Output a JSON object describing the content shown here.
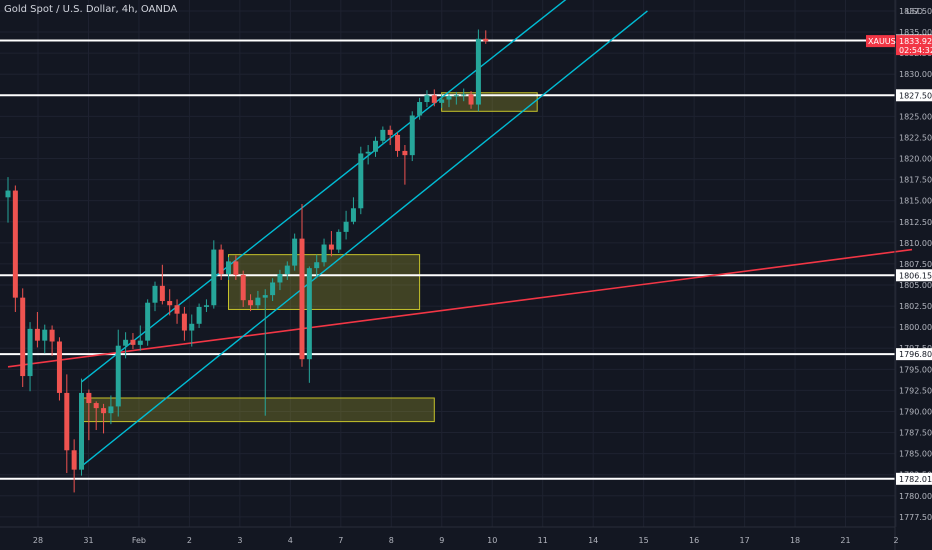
{
  "window": {
    "title": "Gold Spot / U.S. Dollar, 4h, OANDA",
    "currency": "USD"
  },
  "chart_data": {
    "type": "candlestick",
    "title": "Gold Spot / U.S. Dollar, 4h, OANDA",
    "symbol": "XAUUSD",
    "timeframe": "4h",
    "ylabel": "USD",
    "ylim": [
      1776.3,
      1838.8
    ],
    "yticks": [
      "1777.500",
      "1780.000",
      "1782.500",
      "1785.000",
      "1787.500",
      "1790.000",
      "1792.500",
      "1795.000",
      "1797.500",
      "1800.000",
      "1802.500",
      "1805.000",
      "1807.500",
      "1810.000",
      "1812.500",
      "1815.000",
      "1817.500",
      "1820.000",
      "1822.500",
      "1825.000",
      "1827.500",
      "1830.000",
      "1832.500",
      "1835.000",
      "1837.500"
    ],
    "xticks": [
      "28",
      "31",
      "Feb",
      "2",
      "3",
      "4",
      "7",
      "8",
      "9",
      "10",
      "11",
      "14",
      "15",
      "16",
      "17",
      "18",
      "21",
      "2"
    ],
    "colors": {
      "up": "#26a69a",
      "down": "#ef5350",
      "background": "#131722",
      "grid": "#1e2230",
      "channel": "#00bcd4",
      "trendline": "#f23645",
      "zone": "#c6c32a",
      "level": "#ffffff"
    },
    "candles": [
      {
        "o": 1815.4,
        "h": 1817.8,
        "l": 1812.4,
        "c": 1816.2
      },
      {
        "o": 1816.2,
        "h": 1816.8,
        "l": 1801.8,
        "c": 1803.5
      },
      {
        "o": 1803.5,
        "h": 1804.6,
        "l": 1792.9,
        "c": 1794.2
      },
      {
        "o": 1794.2,
        "h": 1800.6,
        "l": 1792.4,
        "c": 1799.8
      },
      {
        "o": 1799.8,
        "h": 1801.8,
        "l": 1797.6,
        "c": 1798.4
      },
      {
        "o": 1798.4,
        "h": 1800.3,
        "l": 1796.9,
        "c": 1799.7
      },
      {
        "o": 1799.7,
        "h": 1800.2,
        "l": 1796.6,
        "c": 1798.3
      },
      {
        "o": 1798.3,
        "h": 1798.8,
        "l": 1791.3,
        "c": 1792.2
      },
      {
        "o": 1792.2,
        "h": 1794.4,
        "l": 1782.7,
        "c": 1785.4
      },
      {
        "o": 1785.4,
        "h": 1786.7,
        "l": 1780.4,
        "c": 1783.1
      },
      {
        "o": 1783.1,
        "h": 1793.9,
        "l": 1782.4,
        "c": 1792.2
      },
      {
        "o": 1792.2,
        "h": 1792.6,
        "l": 1786.6,
        "c": 1791.0
      },
      {
        "o": 1791.0,
        "h": 1791.2,
        "l": 1787.8,
        "c": 1790.4
      },
      {
        "o": 1790.4,
        "h": 1790.9,
        "l": 1787.4,
        "c": 1789.8
      },
      {
        "o": 1789.8,
        "h": 1791.9,
        "l": 1788.5,
        "c": 1790.6
      },
      {
        "o": 1790.6,
        "h": 1799.7,
        "l": 1789.4,
        "c": 1797.8
      },
      {
        "o": 1797.8,
        "h": 1799.4,
        "l": 1796.3,
        "c": 1798.5
      },
      {
        "o": 1798.5,
        "h": 1799.3,
        "l": 1797.4,
        "c": 1797.9
      },
      {
        "o": 1797.9,
        "h": 1800.2,
        "l": 1797.2,
        "c": 1798.4
      },
      {
        "o": 1798.4,
        "h": 1803.3,
        "l": 1797.8,
        "c": 1802.9
      },
      {
        "o": 1802.9,
        "h": 1805.4,
        "l": 1801.9,
        "c": 1804.9
      },
      {
        "o": 1804.9,
        "h": 1807.4,
        "l": 1802.7,
        "c": 1803.1
      },
      {
        "o": 1803.1,
        "h": 1804.5,
        "l": 1801.4,
        "c": 1802.6
      },
      {
        "o": 1802.6,
        "h": 1803.3,
        "l": 1800.4,
        "c": 1801.6
      },
      {
        "o": 1801.6,
        "h": 1802.4,
        "l": 1798.4,
        "c": 1799.6
      },
      {
        "o": 1799.6,
        "h": 1801.5,
        "l": 1797.7,
        "c": 1800.4
      },
      {
        "o": 1800.4,
        "h": 1802.8,
        "l": 1799.9,
        "c": 1802.4
      },
      {
        "o": 1802.4,
        "h": 1803.3,
        "l": 1801.8,
        "c": 1802.6
      },
      {
        "o": 1802.6,
        "h": 1810.3,
        "l": 1802.2,
        "c": 1809.2
      },
      {
        "o": 1809.2,
        "h": 1809.8,
        "l": 1805.6,
        "c": 1806.3
      },
      {
        "o": 1806.3,
        "h": 1808.3,
        "l": 1805.6,
        "c": 1807.8
      },
      {
        "o": 1807.8,
        "h": 1808.5,
        "l": 1805.6,
        "c": 1806.2
      },
      {
        "o": 1806.2,
        "h": 1806.7,
        "l": 1802.4,
        "c": 1803.2
      },
      {
        "o": 1803.2,
        "h": 1803.9,
        "l": 1801.9,
        "c": 1802.6
      },
      {
        "o": 1802.6,
        "h": 1804.3,
        "l": 1802.2,
        "c": 1803.5
      },
      {
        "o": 1803.5,
        "h": 1804.5,
        "l": 1789.5,
        "c": 1803.8
      },
      {
        "o": 1803.8,
        "h": 1805.8,
        "l": 1803.1,
        "c": 1805.3
      },
      {
        "o": 1805.3,
        "h": 1806.8,
        "l": 1804.4,
        "c": 1806.3
      },
      {
        "o": 1806.3,
        "h": 1807.8,
        "l": 1805.6,
        "c": 1807.3
      },
      {
        "o": 1807.3,
        "h": 1811.1,
        "l": 1806.7,
        "c": 1810.5
      },
      {
        "o": 1810.5,
        "h": 1814.6,
        "l": 1795.3,
        "c": 1796.2
      },
      {
        "o": 1796.2,
        "h": 1807.2,
        "l": 1793.4,
        "c": 1807.0
      },
      {
        "o": 1807.0,
        "h": 1808.6,
        "l": 1805.8,
        "c": 1807.7
      },
      {
        "o": 1807.7,
        "h": 1810.5,
        "l": 1807.2,
        "c": 1809.8
      },
      {
        "o": 1809.8,
        "h": 1811.4,
        "l": 1808.4,
        "c": 1809.2
      },
      {
        "o": 1809.2,
        "h": 1811.6,
        "l": 1808.8,
        "c": 1811.3
      },
      {
        "o": 1811.3,
        "h": 1813.8,
        "l": 1810.4,
        "c": 1812.5
      },
      {
        "o": 1812.5,
        "h": 1815.4,
        "l": 1812.2,
        "c": 1814.1
      },
      {
        "o": 1814.1,
        "h": 1821.4,
        "l": 1813.4,
        "c": 1820.6
      },
      {
        "o": 1820.6,
        "h": 1821.6,
        "l": 1819.3,
        "c": 1820.8
      },
      {
        "o": 1820.8,
        "h": 1822.6,
        "l": 1820.2,
        "c": 1822.1
      },
      {
        "o": 1822.1,
        "h": 1823.8,
        "l": 1821.7,
        "c": 1823.4
      },
      {
        "o": 1823.4,
        "h": 1823.9,
        "l": 1821.6,
        "c": 1822.8
      },
      {
        "o": 1822.8,
        "h": 1823.1,
        "l": 1820.2,
        "c": 1820.9
      },
      {
        "o": 1820.9,
        "h": 1821.6,
        "l": 1816.9,
        "c": 1820.4
      },
      {
        "o": 1820.4,
        "h": 1825.6,
        "l": 1819.7,
        "c": 1825.1
      },
      {
        "o": 1825.1,
        "h": 1827.2,
        "l": 1824.6,
        "c": 1826.7
      },
      {
        "o": 1826.7,
        "h": 1828.1,
        "l": 1826.1,
        "c": 1827.5
      },
      {
        "o": 1827.5,
        "h": 1828.2,
        "l": 1826.2,
        "c": 1826.6
      },
      {
        "o": 1826.6,
        "h": 1827.6,
        "l": 1826.0,
        "c": 1827.0
      },
      {
        "o": 1827.0,
        "h": 1827.6,
        "l": 1826.1,
        "c": 1827.4
      },
      {
        "o": 1827.4,
        "h": 1827.9,
        "l": 1826.4,
        "c": 1827.5
      },
      {
        "o": 1827.5,
        "h": 1828.3,
        "l": 1826.8,
        "c": 1827.6
      },
      {
        "o": 1827.6,
        "h": 1828.0,
        "l": 1825.9,
        "c": 1826.4
      },
      {
        "o": 1826.4,
        "h": 1835.3,
        "l": 1825.6,
        "c": 1834.2
      },
      {
        "o": 1834.2,
        "h": 1835.2,
        "l": 1833.6,
        "c": 1833.9
      }
    ],
    "levels": [
      {
        "price": 1834.0,
        "label": "1834.000"
      },
      {
        "price": 1827.5,
        "label": "1827.500"
      },
      {
        "price": 1806.155,
        "label": "1806.155"
      },
      {
        "price": 1796.8,
        "label": "1796.800"
      },
      {
        "price": 1782.015,
        "label": "1782.015"
      }
    ],
    "current_price": {
      "symbol": "XAUUSD",
      "price": "1833.925",
      "countdown": "02:54:32",
      "value": 1833.925
    },
    "zones": [
      {
        "from_bar": 59,
        "to_bar": 72,
        "low": 1825.6,
        "high": 1827.8
      },
      {
        "from_bar": 30,
        "to_bar": 56,
        "low": 1802.1,
        "high": 1808.6
      },
      {
        "from_bar": 10,
        "to_bar": 58,
        "low": 1788.8,
        "high": 1791.6
      }
    ],
    "channel": {
      "upper": {
        "bar1": 10,
        "price1": 1793.5,
        "bar2": 87,
        "price2": 1846.5
      },
      "lower": {
        "bar1": 10,
        "price1": 1783.5,
        "bar2": 87,
        "price2": 1837.5
      }
    },
    "trendline": {
      "bar1": 0,
      "price1": 1795.3,
      "bar2": 123,
      "price2": 1809.2
    }
  }
}
